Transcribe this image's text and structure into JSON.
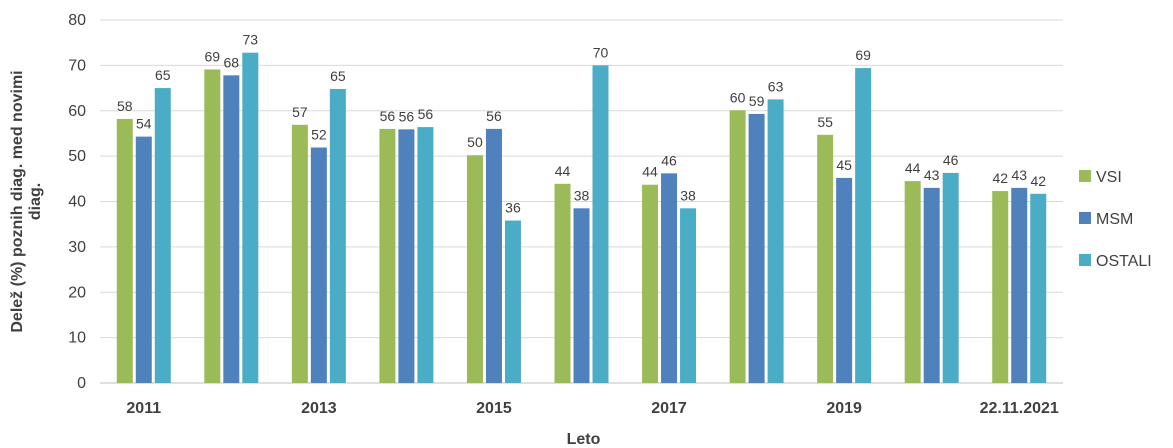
{
  "chart_data": {
    "type": "bar",
    "categories": [
      "2011",
      "",
      "2013",
      "",
      "2015",
      "",
      "2017",
      "",
      "2019",
      "",
      "22.11.2021"
    ],
    "series": [
      {
        "name": "VSI",
        "color": "#9bbb59",
        "values": [
          58,
          69,
          57,
          56,
          50,
          44,
          44,
          60,
          55,
          44,
          42
        ]
      },
      {
        "name": "MSM",
        "color": "#4f81bd",
        "values": [
          54,
          68,
          52,
          56,
          56,
          38,
          46,
          59,
          45,
          43,
          43
        ]
      },
      {
        "name": "OSTALI",
        "color": "#4bacc6",
        "values": [
          65,
          73,
          65,
          56,
          36,
          70,
          38,
          63,
          69,
          46,
          42
        ]
      }
    ],
    "bar_heights_exact": {
      "VSI": [
        58.2,
        69.1,
        56.9,
        56.0,
        50.2,
        43.9,
        43.7,
        60.1,
        54.7,
        44.5,
        42.3
      ],
      "MSM": [
        54.3,
        67.8,
        51.9,
        55.9,
        56.0,
        38.5,
        46.2,
        59.3,
        45.2,
        43.0,
        43.0
      ],
      "OSTALI": [
        65.0,
        72.8,
        64.8,
        56.4,
        35.8,
        70.0,
        38.5,
        62.5,
        69.4,
        46.3,
        41.7
      ]
    },
    "xlabel": "Leto",
    "ylabel": [
      "Delež (%) poznih diag. med novimi",
      "diag."
    ],
    "ylim": [
      0,
      80
    ],
    "yticks": [
      0,
      10,
      20,
      30,
      40,
      50,
      60,
      70,
      80
    ],
    "grid": true,
    "legend_position": "right"
  }
}
